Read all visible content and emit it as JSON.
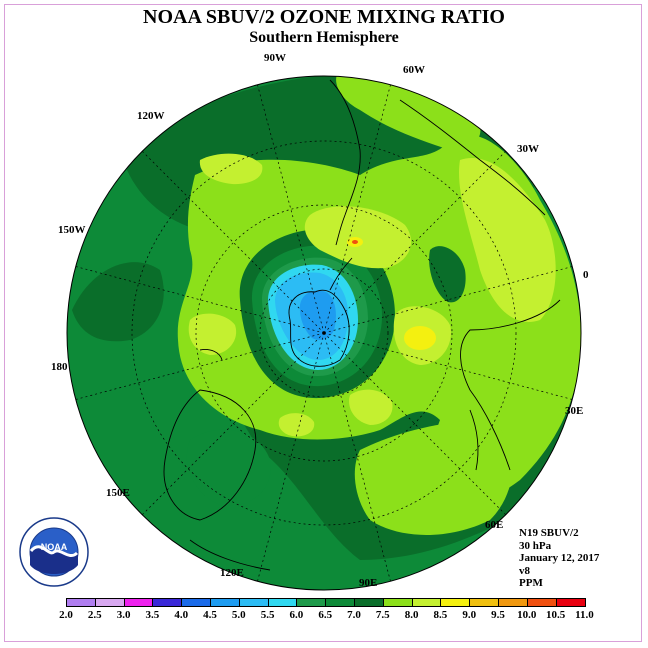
{
  "title": "NOAA SBUV/2 OZONE MIXING RATIO",
  "subtitle": "Southern Hemisphere",
  "longitude_labels": [
    "90W",
    "60W",
    "30W",
    "0",
    "30E",
    "60E",
    "90E",
    "120E",
    "150E",
    "180",
    "150W",
    "120W"
  ],
  "info": {
    "satellite": "N19 SBUV/2",
    "level": "30 hPa",
    "date": "January 12, 2017",
    "version": "v8",
    "units": "PPM"
  },
  "logo": {
    "text": "NOAA",
    "ring_text": "NATIONAL OCEANIC AND ATMOSPHERIC ADMINISTRATION · U.S. DEPARTMENT OF COMMERCE"
  },
  "colorbar": {
    "ticks": [
      "2.0",
      "2.5",
      "3.0",
      "3.5",
      "4.0",
      "4.5",
      "5.0",
      "5.5",
      "6.0",
      "6.5",
      "7.0",
      "7.5",
      "8.0",
      "8.5",
      "9.0",
      "9.5",
      "10.0",
      "10.5",
      "11.0"
    ],
    "colors": [
      "#b07ef0",
      "#d8a8f0",
      "#ee22ee",
      "#3a28d8",
      "#1a6ae8",
      "#1e9cf0",
      "#2cbcf4",
      "#30d8f0",
      "#1e9a4a",
      "#0d8a38",
      "#0a6e2a",
      "#8ce01a",
      "#c4f030",
      "#f4f010",
      "#f0c010",
      "#f09810",
      "#f05010",
      "#e80010",
      "#8a4a30"
    ]
  },
  "colors": {
    "c65": "#0d8a38",
    "c70": "#0a6e2a",
    "c75": "#8ce01a",
    "c80": "#c4f030",
    "c85": "#f4f010",
    "c55": "#30d8f0",
    "c50": "#2cbcf4",
    "c45": "#1e9cf0"
  }
}
